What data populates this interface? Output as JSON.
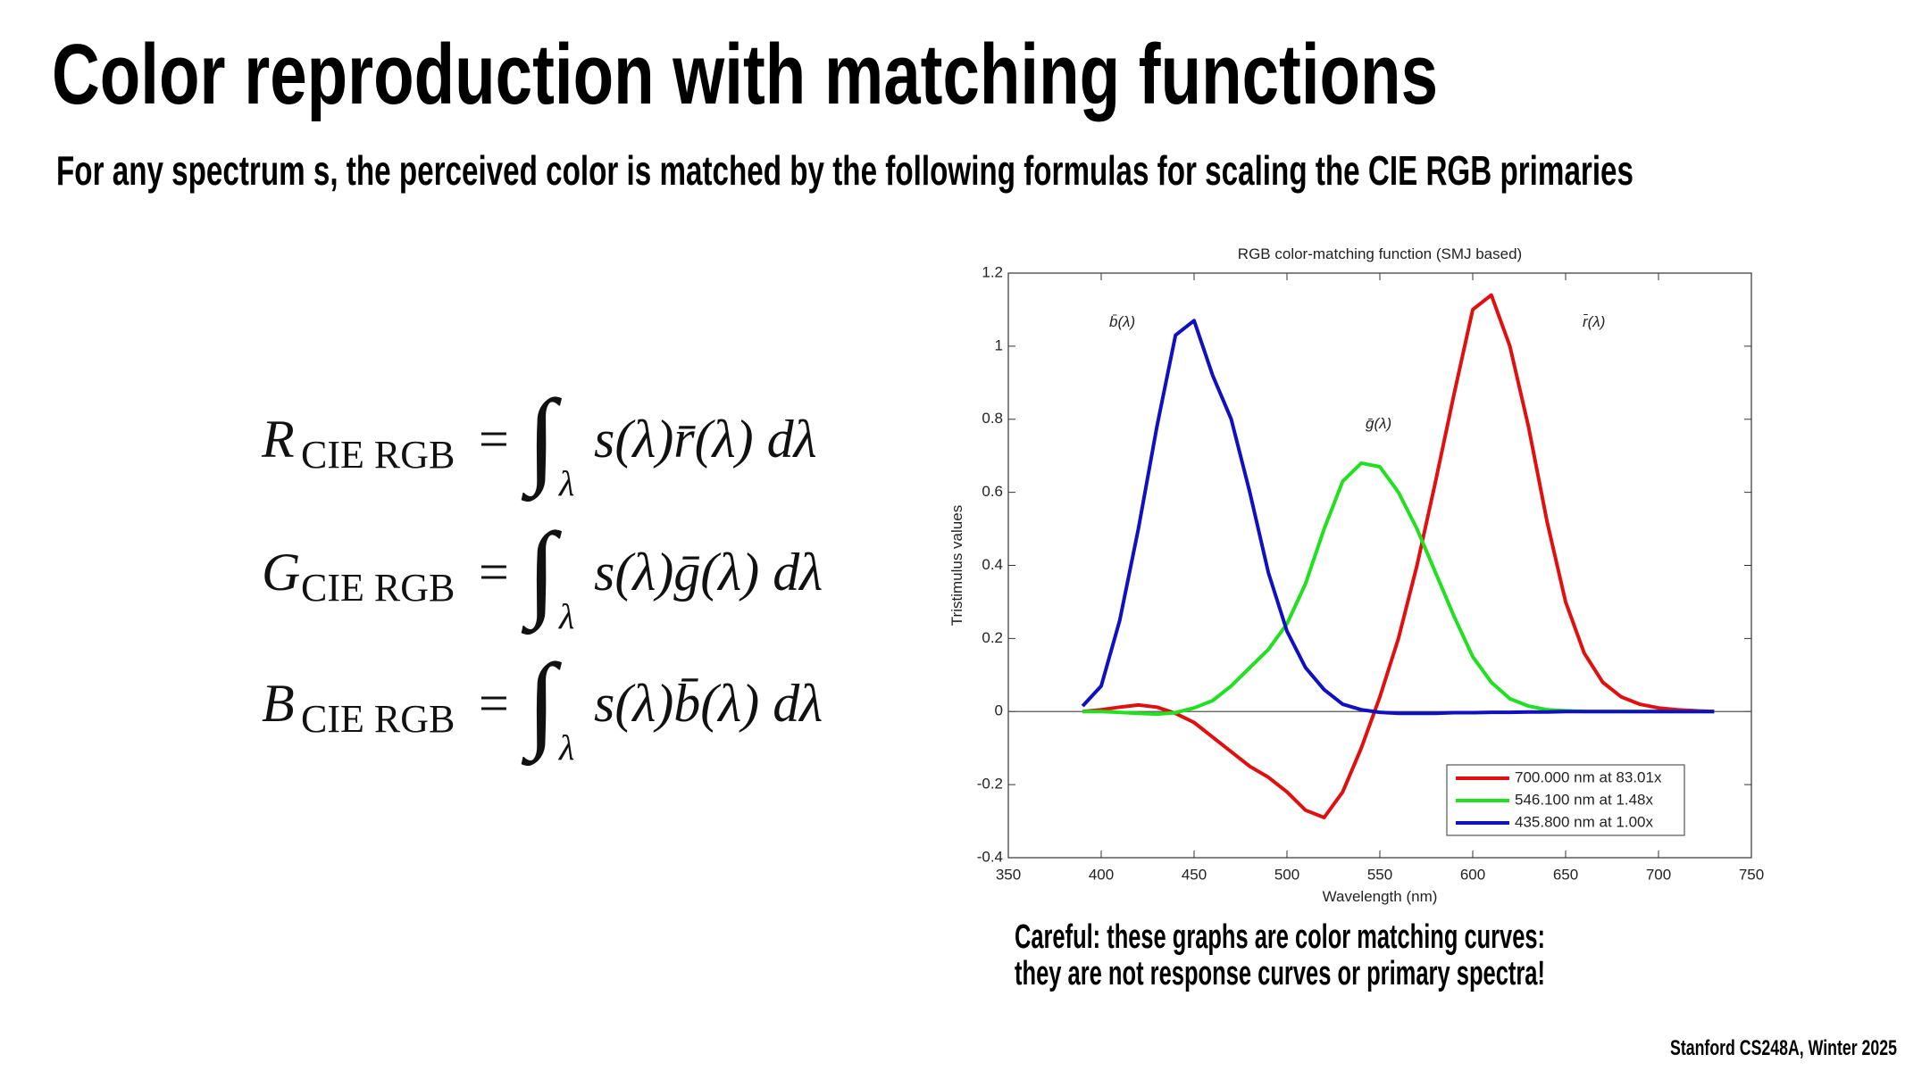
{
  "slide": {
    "title": "Color reproduction with matching functions",
    "subtitle": "For any spectrum s, the perceived color is matched by the following formulas for scaling the CIE RGB primaries",
    "formulas": [
      {
        "symbol": "R",
        "subscript": "CIE RGB",
        "equals": "=",
        "integral": "∫",
        "limit": "λ",
        "integrand": "s(λ)r̄(λ) dλ"
      },
      {
        "symbol": "G",
        "subscript": "CIE RGB",
        "equals": "=",
        "integral": "∫",
        "limit": "λ",
        "integrand": "s(λ)ḡ(λ) dλ"
      },
      {
        "symbol": "B",
        "subscript": "CIE RGB",
        "equals": "=",
        "integral": "∫",
        "limit": "λ",
        "integrand": "s(λ)b̄(λ) dλ"
      }
    ],
    "note": [
      "Careful: these graphs are color matching curves:",
      "they are not response curves or primary spectra!"
    ],
    "footer": "Stanford CS248A, Winter 2025"
  },
  "chart_data": {
    "type": "line",
    "title": "RGB color-matching function (SMJ based)",
    "x_label": "Wavelength (nm)",
    "y_label": "Tristimulus values",
    "x": [
      390,
      400,
      410,
      420,
      430,
      440,
      450,
      460,
      470,
      480,
      490,
      500,
      510,
      520,
      530,
      540,
      550,
      560,
      570,
      580,
      590,
      600,
      610,
      620,
      630,
      640,
      650,
      660,
      670,
      680,
      690,
      700,
      710,
      720,
      730
    ],
    "series": [
      {
        "name": "700.000 nm at 83.01x",
        "color": "#e01010",
        "values": [
          0,
          0.005,
          0.012,
          0.018,
          0.012,
          -0.005,
          -0.03,
          -0.07,
          -0.11,
          -0.15,
          -0.18,
          -0.22,
          -0.27,
          -0.29,
          -0.22,
          -0.1,
          0.04,
          0.2,
          0.4,
          0.63,
          0.87,
          1.1,
          1.14,
          1.0,
          0.78,
          0.52,
          0.3,
          0.16,
          0.08,
          0.04,
          0.02,
          0.01,
          0.005,
          0.002,
          0
        ]
      },
      {
        "name": "546.100 nm at  1.48x",
        "color": "#20e020",
        "values": [
          0,
          0,
          -0.002,
          -0.005,
          -0.007,
          -0.003,
          0.01,
          0.03,
          0.07,
          0.12,
          0.17,
          0.24,
          0.35,
          0.5,
          0.63,
          0.68,
          0.67,
          0.6,
          0.5,
          0.38,
          0.26,
          0.15,
          0.08,
          0.035,
          0.015,
          0.005,
          0.002,
          0,
          0,
          0,
          0,
          0,
          0,
          0,
          0
        ]
      },
      {
        "name": "435.800 nm at  1.00x",
        "color": "#1010c0",
        "values": [
          0.015,
          0.07,
          0.25,
          0.5,
          0.78,
          1.03,
          1.07,
          0.92,
          0.8,
          0.6,
          0.38,
          0.22,
          0.12,
          0.06,
          0.02,
          0.005,
          -0.002,
          -0.005,
          -0.005,
          -0.005,
          -0.003,
          -0.003,
          -0.002,
          -0.002,
          -0.001,
          -0.001,
          0,
          0,
          0,
          0,
          0,
          0,
          0,
          0,
          0
        ]
      }
    ],
    "annotations": [
      "b̄(λ)",
      "ḡ(λ)",
      "r̄(λ)"
    ],
    "xlim": [
      350,
      750
    ],
    "xticks": [
      350,
      400,
      450,
      500,
      550,
      600,
      650,
      700,
      750
    ],
    "ylim": [
      -0.4,
      1.2
    ],
    "yticks": [
      -0.4,
      -0.2,
      0,
      0.2,
      0.4,
      0.6,
      0.8,
      1,
      1.2
    ],
    "legend": "lower right"
  }
}
